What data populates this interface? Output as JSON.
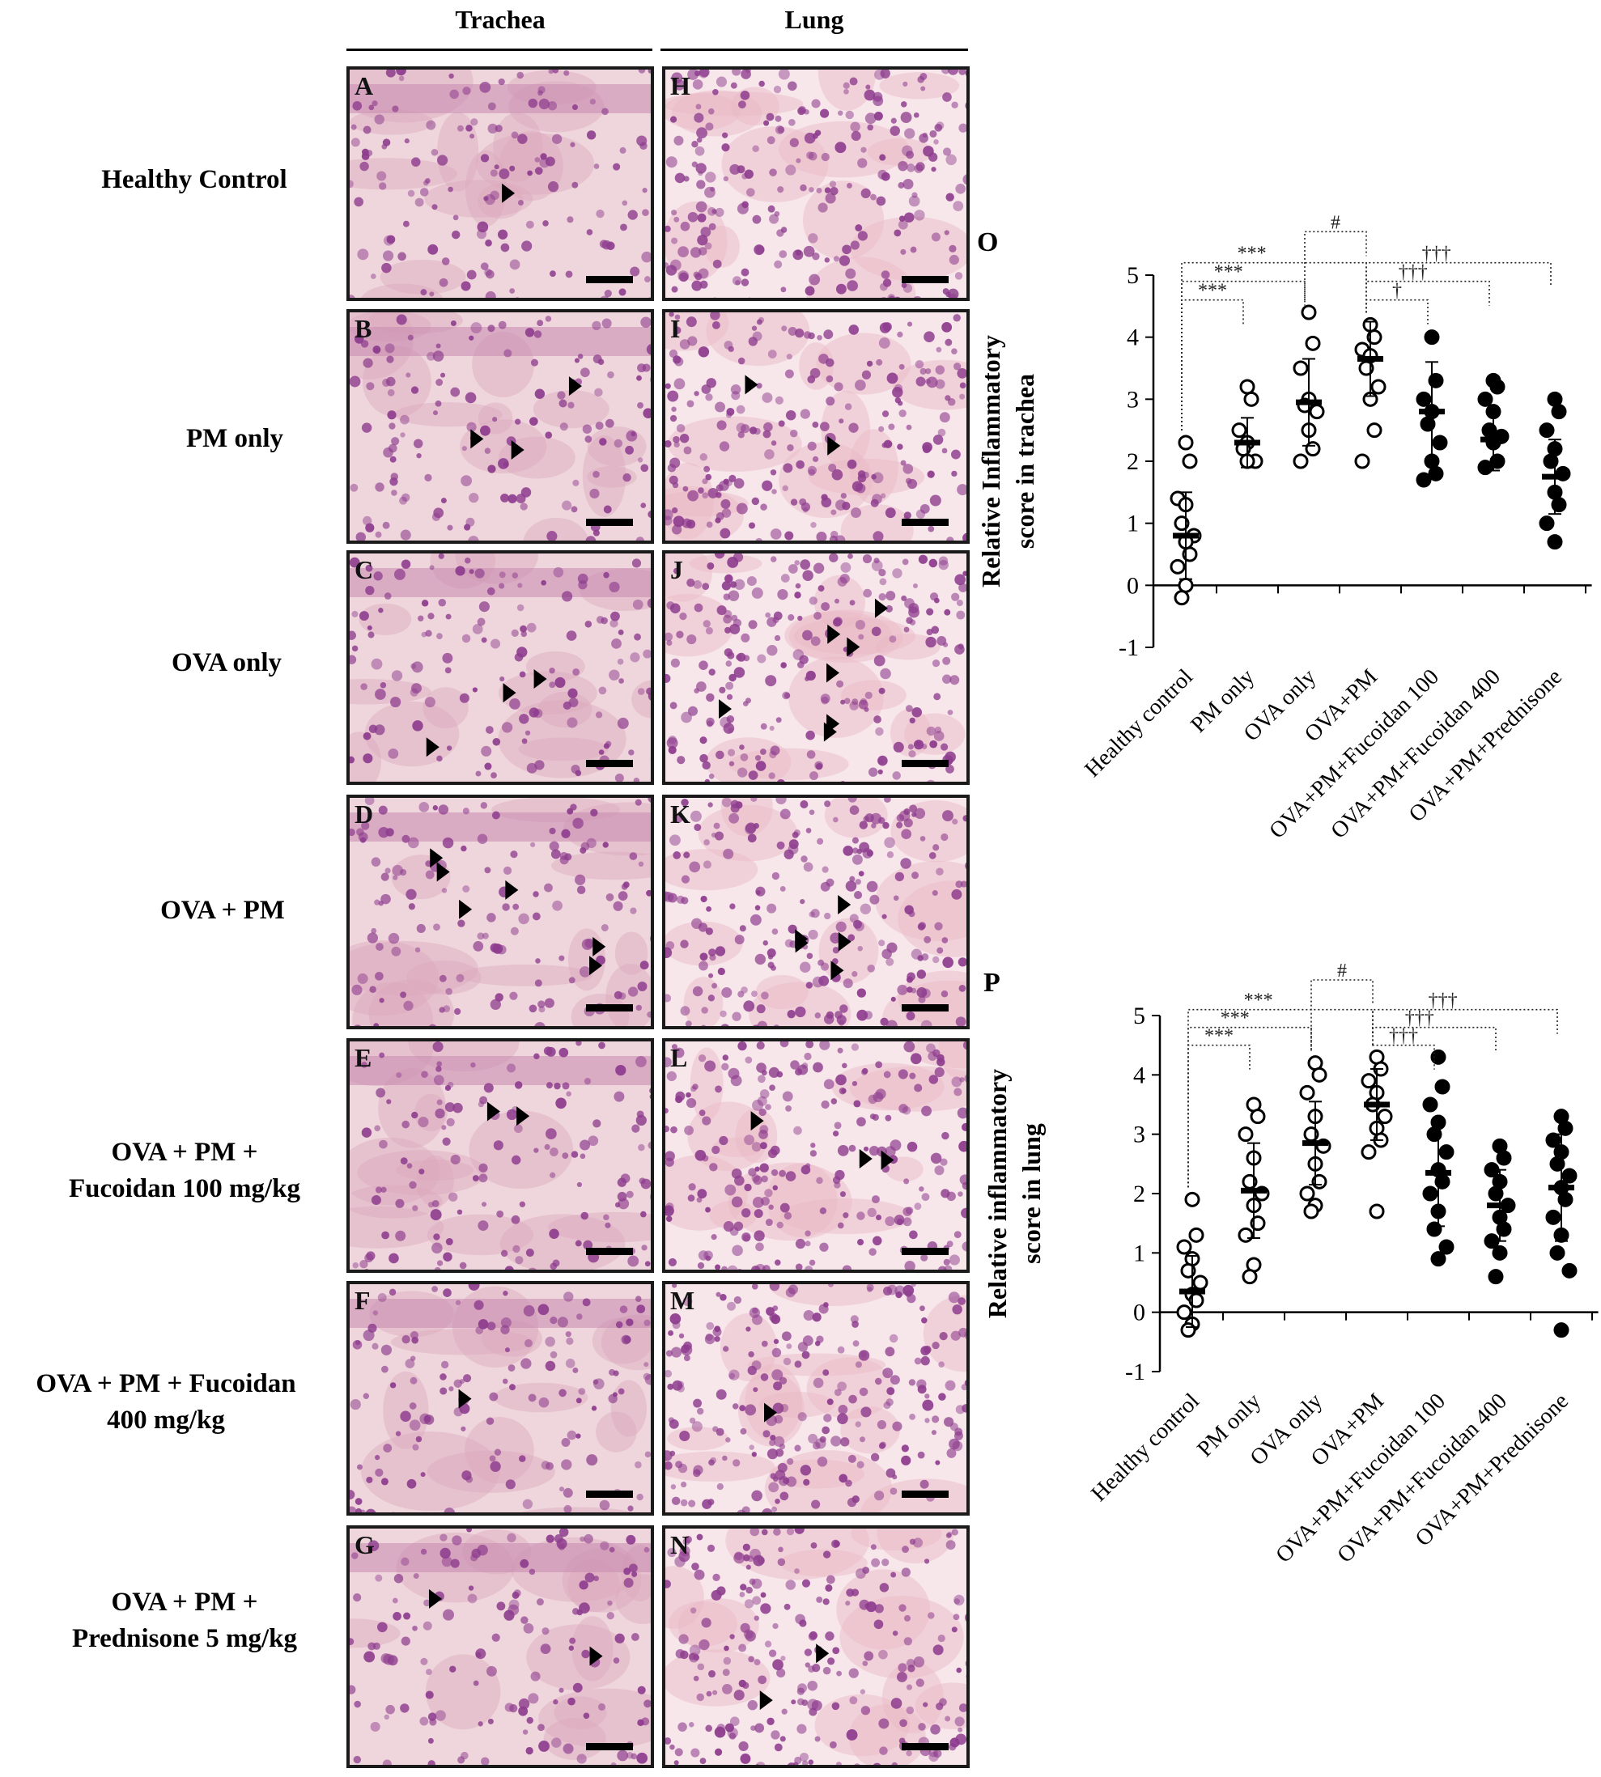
{
  "columns": {
    "trachea": "Trachea",
    "lung": "Lung"
  },
  "rows": [
    {
      "label_lines": [
        "Healthy Control"
      ],
      "trachea_letter": "A",
      "lung_letter": "H"
    },
    {
      "label_lines": [
        "PM only"
      ],
      "trachea_letter": "B",
      "lung_letter": "I"
    },
    {
      "label_lines": [
        "OVA only"
      ],
      "trachea_letter": "C",
      "lung_letter": "J"
    },
    {
      "label_lines": [
        "OVA + PM"
      ],
      "trachea_letter": "D",
      "lung_letter": "K"
    },
    {
      "label_lines": [
        "OVA + PM +",
        "Fucoidan 100 mg/kg"
      ],
      "trachea_letter": "E",
      "lung_letter": "L"
    },
    {
      "label_lines": [
        "OVA + PM +  Fucoidan",
        "400 mg/kg"
      ],
      "trachea_letter": "F",
      "lung_letter": "M"
    },
    {
      "label_lines": [
        "OVA + PM +",
        "Prednisone 5 mg/kg"
      ],
      "trachea_letter": "G",
      "lung_letter": "N"
    }
  ],
  "colors": {
    "stain_background": "#efd6dc",
    "stain_nuclei": "#8e3d8e",
    "open_marker": "#ffffff",
    "filled_marker": "#000000"
  },
  "chart_data": [
    {
      "panel_letter": "O",
      "type": "scatter",
      "ylabel": "Relative Inflammatory score in  trachea",
      "ylim": [
        -1,
        5
      ],
      "yticks": [
        -1,
        0,
        1,
        2,
        3,
        4,
        5
      ],
      "categories": [
        "Healthy control",
        "PM only",
        "OVA only",
        "OVA+PM",
        "OVA+PM+Fucoidan 100",
        "OVA+PM+Fucoidan 400",
        "OVA+PM+Prednisone"
      ],
      "filled": [
        false,
        false,
        false,
        false,
        true,
        true,
        true
      ],
      "points": [
        [
          2.3,
          2.0,
          1.4,
          1.3,
          1.0,
          0.8,
          0.7,
          0.5,
          0.3,
          0.0,
          -0.2
        ],
        [
          3.2,
          3.0,
          2.5,
          2.3,
          2.2,
          2.0,
          2.0
        ],
        [
          4.4,
          3.9,
          3.5,
          3.0,
          2.9,
          2.8,
          2.5,
          2.2,
          2.0
        ],
        [
          4.2,
          4.0,
          3.8,
          3.7,
          3.5,
          3.2,
          3.0,
          2.5,
          2.0
        ],
        [
          4.0,
          3.3,
          3.0,
          2.8,
          2.6,
          2.3,
          2.0,
          1.8,
          1.7
        ],
        [
          3.3,
          3.2,
          3.0,
          2.8,
          2.5,
          2.4,
          2.3,
          2.0,
          1.9
        ],
        [
          3.0,
          2.8,
          2.5,
          2.2,
          2.0,
          1.8,
          1.5,
          1.3,
          1.0,
          0.7
        ]
      ],
      "means": [
        0.8,
        2.3,
        2.95,
        3.65,
        2.8,
        2.35,
        1.75
      ],
      "sd": [
        0.7,
        0.4,
        0.7,
        0.6,
        0.8,
        0.5,
        0.6
      ],
      "significance": [
        {
          "from": 0,
          "to": 1,
          "label": "***",
          "level": 4.6
        },
        {
          "from": 0,
          "to": 2,
          "label": "***",
          "level": 4.9
        },
        {
          "from": 0,
          "to": 3,
          "label": "***",
          "level": 5.2
        },
        {
          "from": 2,
          "to": 3,
          "label": "#",
          "level": 5.7
        },
        {
          "from": 3,
          "to": 4,
          "label": "†",
          "level": 4.6
        },
        {
          "from": 3,
          "to": 5,
          "label": "†††",
          "level": 4.9
        },
        {
          "from": 3,
          "to": 6,
          "label": "†††",
          "level": 5.2
        }
      ]
    },
    {
      "panel_letter": "P",
      "type": "scatter",
      "ylabel": "Relative inflammatory score in lung",
      "ylim": [
        -1,
        5
      ],
      "yticks": [
        -1,
        0,
        1,
        2,
        3,
        4,
        5
      ],
      "categories": [
        "Healthy control",
        "PM only",
        "OVA only",
        "OVA+PM",
        "OVA+PM+Fucoidan 100",
        "OVA+PM+Fucoidan 400",
        "OVA+PM+Prednisone"
      ],
      "filled": [
        false,
        false,
        false,
        false,
        true,
        true,
        true
      ],
      "points": [
        [
          1.9,
          1.3,
          1.1,
          0.9,
          0.7,
          0.5,
          0.3,
          0.2,
          0.0,
          -0.2,
          -0.3
        ],
        [
          3.5,
          3.3,
          3.0,
          2.6,
          2.2,
          2.0,
          1.8,
          1.5,
          1.3,
          0.8,
          0.6
        ],
        [
          4.2,
          4.0,
          3.7,
          3.3,
          3.0,
          2.8,
          2.5,
          2.2,
          2.0,
          1.8,
          1.7
        ],
        [
          4.3,
          4.1,
          3.9,
          3.7,
          3.5,
          3.3,
          3.1,
          2.9,
          2.7,
          1.7
        ],
        [
          4.3,
          3.8,
          3.5,
          3.2,
          3.0,
          2.7,
          2.4,
          2.2,
          2.0,
          1.7,
          1.4,
          1.1,
          0.9
        ],
        [
          2.8,
          2.6,
          2.4,
          2.2,
          2.0,
          1.8,
          1.6,
          1.4,
          1.2,
          1.0,
          0.6
        ],
        [
          3.3,
          3.1,
          2.9,
          2.7,
          2.5,
          2.3,
          2.1,
          1.9,
          1.6,
          1.3,
          1.0,
          0.7,
          -0.3
        ]
      ],
      "means": [
        0.35,
        2.05,
        2.85,
        3.5,
        2.35,
        1.8,
        2.1
      ],
      "sd": [
        0.6,
        0.8,
        0.7,
        0.6,
        0.9,
        0.6,
        0.9
      ],
      "significance": [
        {
          "from": 0,
          "to": 1,
          "label": "***",
          "level": 4.5
        },
        {
          "from": 0,
          "to": 2,
          "label": "***",
          "level": 4.8
        },
        {
          "from": 0,
          "to": 3,
          "label": "***",
          "level": 5.1
        },
        {
          "from": 2,
          "to": 3,
          "label": "#",
          "level": 5.6
        },
        {
          "from": 3,
          "to": 4,
          "label": "†††",
          "level": 4.5
        },
        {
          "from": 3,
          "to": 5,
          "label": "†††",
          "level": 4.8
        },
        {
          "from": 3,
          "to": 6,
          "label": "†††",
          "level": 5.1
        }
      ]
    }
  ]
}
